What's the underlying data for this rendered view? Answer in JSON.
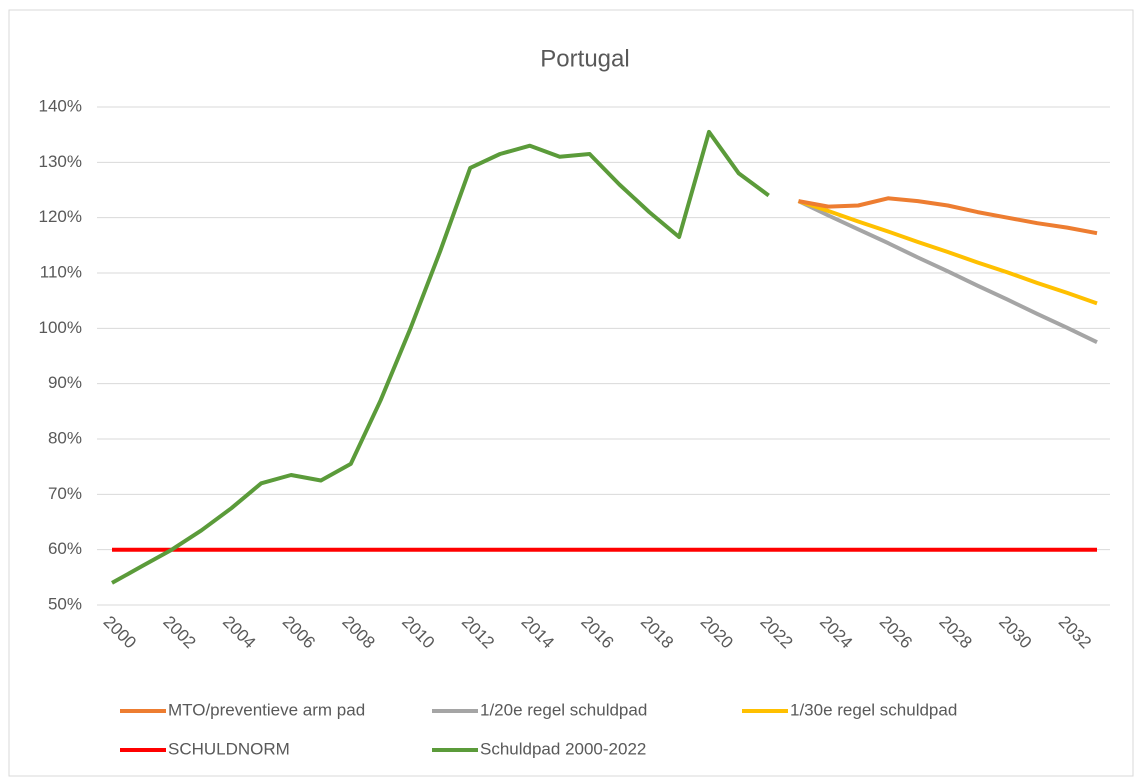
{
  "chart_data": {
    "type": "line",
    "title": "Portugal",
    "categories": [
      "2000",
      null,
      "2002",
      null,
      "2004",
      null,
      "2006",
      null,
      "2008",
      null,
      "2010",
      null,
      "2012",
      null,
      "2014",
      null,
      "2016",
      null,
      "2018",
      null,
      "2020",
      null,
      "2022",
      null,
      "2024",
      null,
      "2026",
      null,
      "2028",
      null,
      "2030",
      null,
      "2032",
      null
    ],
    "series": [
      {
        "name": "MTO/preventieve arm pad",
        "color": "#ed7d31",
        "values": [
          null,
          null,
          null,
          null,
          null,
          null,
          null,
          null,
          null,
          null,
          null,
          null,
          null,
          null,
          null,
          null,
          null,
          null,
          null,
          null,
          null,
          null,
          null,
          123,
          122,
          122.2,
          123.5,
          123,
          122.2,
          121,
          120,
          119,
          118.2,
          117.2
        ]
      },
      {
        "name": "1/20e regel schuldpad",
        "color": "#a5a5a5",
        "values": [
          null,
          null,
          null,
          null,
          null,
          null,
          null,
          null,
          null,
          null,
          null,
          null,
          null,
          null,
          null,
          null,
          null,
          null,
          null,
          null,
          null,
          null,
          null,
          123,
          120.4,
          117.9,
          115.4,
          112.8,
          110.3,
          107.7,
          105.2,
          102.6,
          100.1,
          97.5
        ]
      },
      {
        "name": "1/30e regel schuldpad",
        "color": "#ffc000",
        "values": [
          null,
          null,
          null,
          null,
          null,
          null,
          null,
          null,
          null,
          null,
          null,
          null,
          null,
          null,
          null,
          null,
          null,
          null,
          null,
          null,
          null,
          null,
          null,
          123,
          121.2,
          119.3,
          117.5,
          115.6,
          113.8,
          111.9,
          110.1,
          108.2,
          106.4,
          104.5
        ]
      },
      {
        "name": "SCHULDNORM",
        "color": "#ff0000",
        "values": [
          60,
          60,
          60,
          60,
          60,
          60,
          60,
          60,
          60,
          60,
          60,
          60,
          60,
          60,
          60,
          60,
          60,
          60,
          60,
          60,
          60,
          60,
          60,
          60,
          60,
          60,
          60,
          60,
          60,
          60,
          60,
          60,
          60,
          60
        ]
      },
      {
        "name": "Schuldpad 2000-2022",
        "color": "#5b9b3a",
        "values": [
          54,
          57,
          60,
          63.5,
          67.5,
          72,
          73.5,
          72.5,
          75.5,
          87,
          100,
          114,
          129,
          131.5,
          133,
          131,
          131.5,
          126,
          121,
          116.5,
          135.5,
          128,
          124,
          null,
          null,
          null,
          null,
          null,
          null,
          null,
          null,
          null,
          null,
          null
        ]
      }
    ],
    "ylim": [
      50,
      140
    ],
    "yticks": [
      {
        "value": 50,
        "label": "50%"
      },
      {
        "value": 60,
        "label": "60%"
      },
      {
        "value": 70,
        "label": "70%"
      },
      {
        "value": 80,
        "label": "80%"
      },
      {
        "value": 90,
        "label": "90%"
      },
      {
        "value": 100,
        "label": "100%"
      },
      {
        "value": 110,
        "label": "110%"
      },
      {
        "value": 120,
        "label": "120%"
      },
      {
        "value": 130,
        "label": "130%"
      },
      {
        "value": 140,
        "label": "140%"
      }
    ],
    "grid": true,
    "legend": "bottom"
  }
}
